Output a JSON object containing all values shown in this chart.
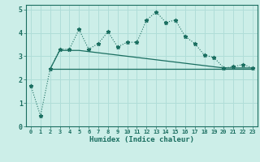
{
  "xlabel": "Humidex (Indice chaleur)",
  "ylabel": "",
  "bg_color": "#cceee8",
  "line_color": "#1a6e60",
  "grid_color": "#b0ddd8",
  "xlim": [
    -0.5,
    23.5
  ],
  "ylim": [
    0,
    5.2
  ],
  "x_ticks": [
    0,
    1,
    2,
    3,
    4,
    5,
    6,
    7,
    8,
    9,
    10,
    11,
    12,
    13,
    14,
    15,
    16,
    17,
    18,
    19,
    20,
    21,
    22,
    23
  ],
  "x_tick_labels": [
    "0",
    "1",
    "2",
    "3",
    "4",
    "5",
    "6",
    "7",
    "8",
    "9",
    "10",
    "11",
    "12",
    "13",
    "14",
    "15",
    "16",
    "17",
    "18",
    "19",
    "20",
    "21",
    "22",
    "23"
  ],
  "y_ticks": [
    0,
    1,
    2,
    3,
    4,
    5
  ],
  "series1_x": [
    0,
    1,
    2,
    3,
    4,
    5,
    6,
    7,
    8,
    9,
    10,
    11,
    12,
    13,
    14,
    15,
    16,
    17,
    18,
    19,
    20,
    21,
    22,
    23
  ],
  "series1_y": [
    1.75,
    0.45,
    2.45,
    3.3,
    3.3,
    4.15,
    3.3,
    3.55,
    4.05,
    3.4,
    3.6,
    3.6,
    4.55,
    4.9,
    4.45,
    4.55,
    3.85,
    3.55,
    3.05,
    2.95,
    2.5,
    2.55,
    2.65,
    2.5
  ],
  "series2_x": [
    2,
    3,
    4,
    5,
    6,
    7,
    8,
    9,
    10,
    11,
    12,
    13,
    14,
    15,
    16,
    17,
    18,
    19,
    20,
    21,
    22,
    23
  ],
  "series2_y": [
    2.45,
    3.25,
    3.25,
    3.25,
    3.2,
    3.15,
    3.1,
    3.05,
    3.0,
    2.95,
    2.9,
    2.85,
    2.8,
    2.75,
    2.7,
    2.65,
    2.6,
    2.55,
    2.5,
    2.5,
    2.5,
    2.5
  ],
  "series3_x": [
    2,
    3,
    4,
    5,
    6,
    7,
    8,
    9,
    10,
    11,
    12,
    13,
    14,
    15,
    16,
    17,
    18,
    19,
    20,
    21,
    22,
    23
  ],
  "series3_y": [
    2.45,
    2.45,
    2.45,
    2.45,
    2.45,
    2.45,
    2.45,
    2.45,
    2.45,
    2.45,
    2.45,
    2.45,
    2.45,
    2.45,
    2.45,
    2.45,
    2.45,
    2.45,
    2.45,
    2.45,
    2.45,
    2.45
  ]
}
